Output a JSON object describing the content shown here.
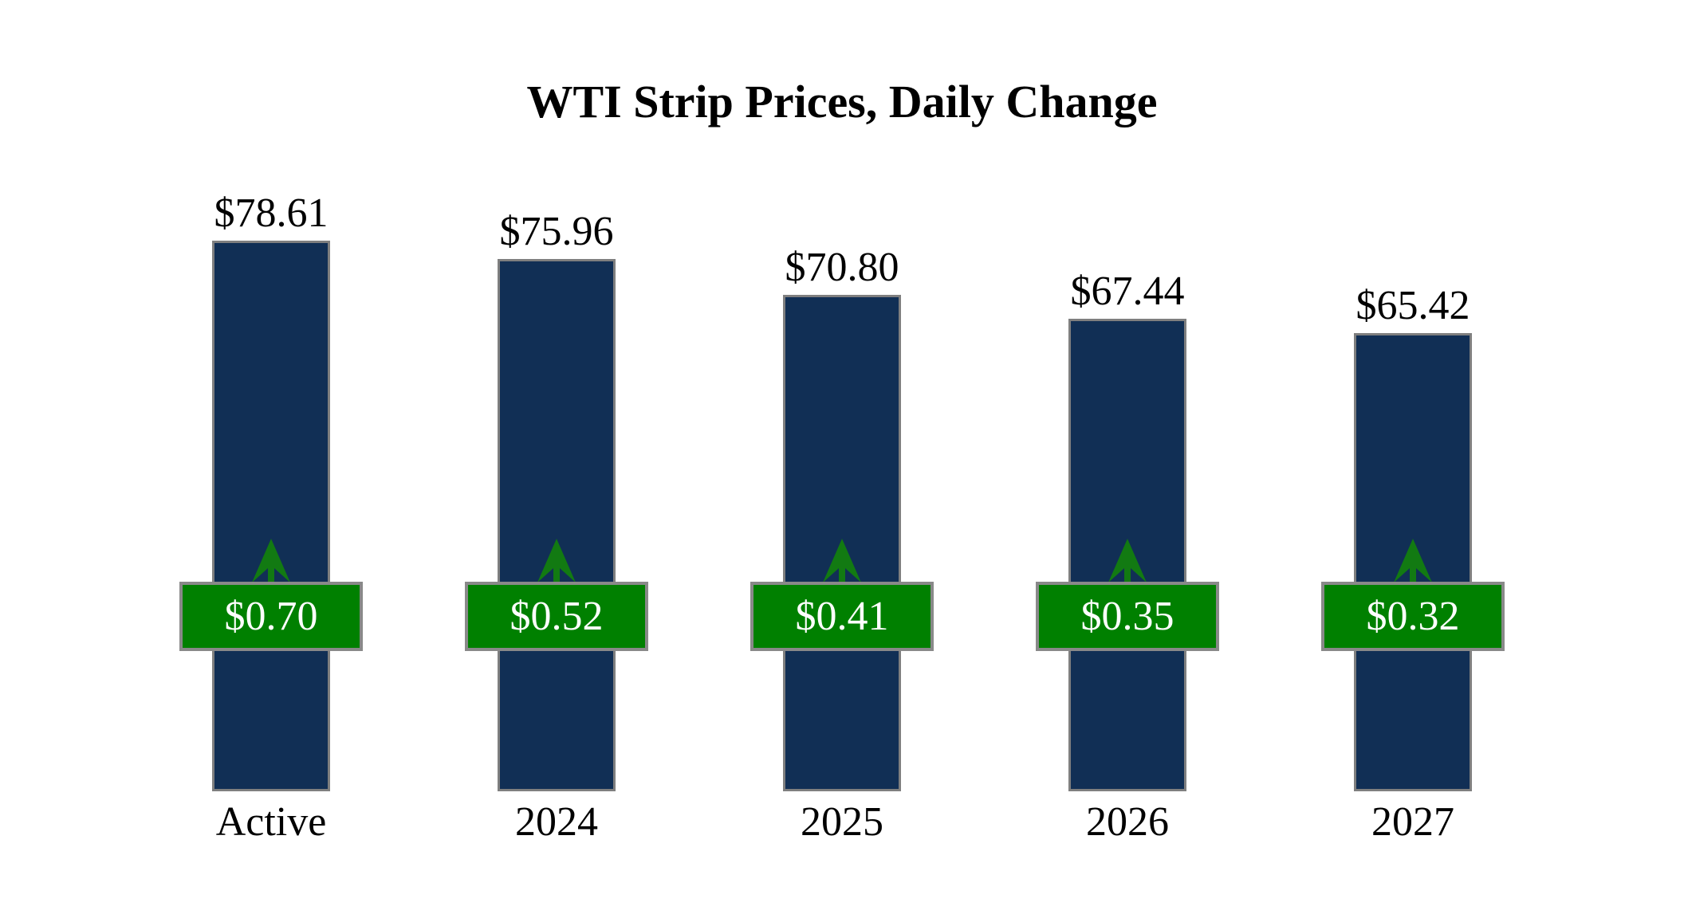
{
  "title": "WTI Strip Prices, Daily Change",
  "chart_data": {
    "type": "bar",
    "title": "WTI Strip Prices, Daily Change",
    "categories": [
      "Active",
      "2024",
      "2025",
      "2026",
      "2027"
    ],
    "series": [
      {
        "name": "WTI Strip Price",
        "role": "bar",
        "values": [
          78.61,
          75.96,
          70.8,
          67.44,
          65.42
        ],
        "labels": [
          "$78.61",
          "$75.96",
          "$70.80",
          "$67.44",
          "$65.42"
        ]
      },
      {
        "name": "Daily Change",
        "role": "change-badge",
        "values": [
          0.7,
          0.52,
          0.41,
          0.35,
          0.32
        ],
        "labels": [
          "$0.70",
          "$0.52",
          "$0.41",
          "$0.35",
          "$0.32"
        ],
        "directions": [
          "up",
          "up",
          "up",
          "up",
          "up"
        ]
      }
    ],
    "ylim": [
      0,
      80
    ],
    "grid": false,
    "value_axis_visible": false,
    "legend_position": "none",
    "icons": {
      "change_indicator": "up-arrow-icon"
    },
    "colors": {
      "bar_fill": "#112f55",
      "bar_border": "#7f7f7f",
      "badge_fill": "#008000",
      "badge_border": "#898989",
      "badge_text": "#ffffff",
      "arrow": "#127a12",
      "text": "#000000",
      "background": "#ffffff"
    }
  }
}
